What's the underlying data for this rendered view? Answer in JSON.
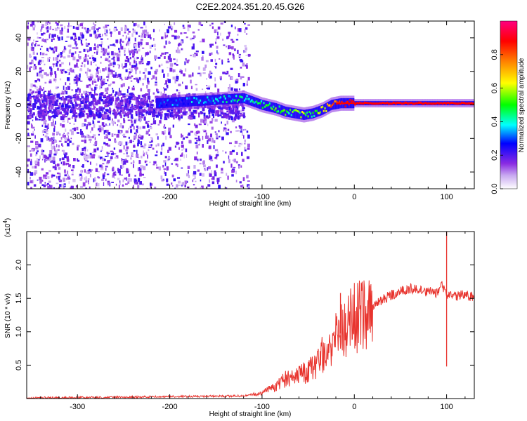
{
  "title": "C2E2.2024.351.20.45.G26",
  "colors": {
    "spectrogram_low": "#8a2be2",
    "spectrogram_high": "#ff0000",
    "snr_line": "#e8342e"
  },
  "colorbar": {
    "label": "Normalized spectral amplitude",
    "range": [
      0.0,
      1.0
    ],
    "ticks": [
      "0.0",
      "0.2",
      "0.4",
      "0.6",
      "0.8"
    ],
    "tick_values": [
      0.0,
      0.2,
      0.4,
      0.6,
      0.8
    ],
    "colormap": [
      "#ffffff",
      "#8a2be2",
      "#0000ff",
      "#00ffff",
      "#00ff00",
      "#ffff00",
      "#ff8000",
      "#ff0000",
      "#ff0080"
    ]
  },
  "chart_data": [
    {
      "type": "heatmap",
      "title": "C2E2.2024.351.20.45.G26",
      "xlabel": "Height of straight line (km)",
      "ylabel": "Frequency (Hz)",
      "xlim": [
        -355,
        130
      ],
      "ylim": [
        -50,
        50
      ],
      "x_ticks": [
        -300,
        -200,
        -100,
        0,
        100
      ],
      "x_tick_labels": [
        "-300",
        "-200",
        "-100",
        "0",
        "100"
      ],
      "y_ticks": [
        -40,
        -20,
        0,
        20,
        40
      ],
      "y_tick_labels": [
        "-40",
        "-20",
        "0",
        "20",
        "40"
      ],
      "noise_region_x": [
        -355,
        -120
      ],
      "signal_ridge": {
        "x": [
          -210,
          -180,
          -150,
          -120,
          -100,
          -85,
          -75,
          -65,
          -55,
          -45,
          -35,
          -25,
          -15,
          0,
          20,
          60,
          100,
          130
        ],
        "frequency": [
          1,
          2,
          3,
          4,
          0,
          -2,
          -4,
          -5,
          -6,
          -5,
          -3,
          0,
          1,
          1,
          1,
          1,
          1,
          1
        ],
        "normalized_amplitude": [
          0.3,
          0.3,
          0.35,
          0.4,
          0.45,
          0.5,
          0.45,
          0.5,
          0.55,
          0.5,
          0.6,
          0.8,
          0.85,
          0.9,
          0.9,
          0.9,
          0.9,
          0.9
        ]
      }
    },
    {
      "type": "line",
      "xlabel": "Height of straight line (km)",
      "ylabel": "SNR (10 * v/v)",
      "y_multiplier": "(x10^4)",
      "xlim": [
        -355,
        130
      ],
      "ylim": [
        0,
        25000
      ],
      "x_ticks": [
        -300,
        -200,
        -100,
        0,
        100
      ],
      "x_tick_labels": [
        "-300",
        "-200",
        "-100",
        "0",
        "100"
      ],
      "y_ticks": [
        5000,
        10000,
        15000,
        20000
      ],
      "y_tick_labels": [
        "0.5",
        "1.0",
        "1.5",
        "2.0"
      ],
      "series": [
        {
          "x": [
            -355,
            -300,
            -250,
            -200,
            -150,
            -120,
            -100,
            -90,
            -80,
            -70,
            -60,
            -50,
            -40,
            -30,
            -20,
            -10,
            0,
            10,
            20,
            30,
            40,
            50,
            60,
            70,
            80,
            90,
            95,
            100,
            105,
            110,
            120,
            130
          ],
          "values": [
            100,
            150,
            200,
            300,
            350,
            400,
            800,
            1500,
            2500,
            3200,
            3500,
            4000,
            5500,
            7500,
            9000,
            10500,
            12000,
            13000,
            14000,
            14800,
            15500,
            16000,
            16500,
            16200,
            16000,
            15800,
            17000,
            15500,
            15600,
            15400,
            15500,
            15200
          ]
        }
      ],
      "annotations": [
        {
          "x": -15,
          "value": 15800,
          "label": ""
        },
        {
          "x": 100,
          "value": 25000,
          "label": ""
        },
        {
          "x": 100,
          "value": 4800,
          "label": ""
        }
      ]
    }
  ]
}
